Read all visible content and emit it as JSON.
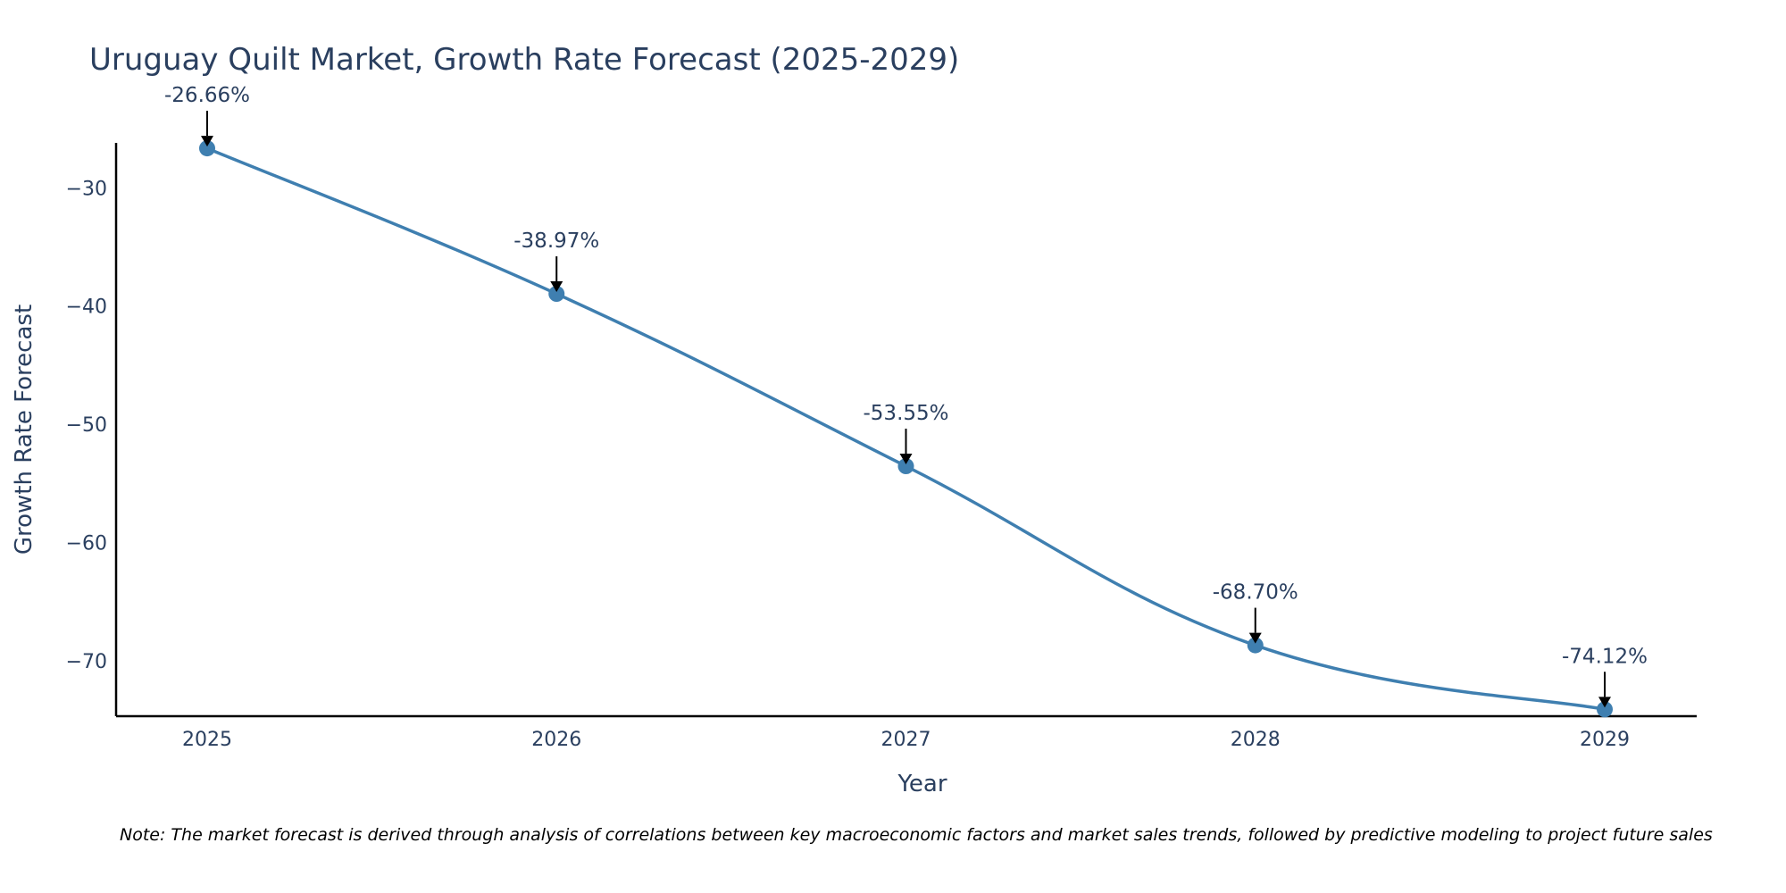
{
  "chart_data": {
    "type": "line",
    "title": "Uruguay Quilt Market, Growth Rate Forecast (2025-2029)",
    "xlabel": "Year",
    "ylabel": "Growth Rate Forecast",
    "categories": [
      "2025",
      "2026",
      "2027",
      "2028",
      "2029"
    ],
    "series": [
      {
        "name": "Growth Rate Forecast",
        "values": [
          -26.66,
          -38.97,
          -53.55,
          -68.7,
          -74.12
        ],
        "labels": [
          "-26.66%",
          "-38.97%",
          "-53.55%",
          "-68.70%",
          "-74.12%"
        ]
      }
    ],
    "yticks": [
      -30,
      -40,
      -50,
      -60,
      -70
    ],
    "ytick_labels": [
      "−30",
      "−40",
      "−50",
      "−60",
      "−70"
    ],
    "ylim": [
      -74.7,
      -26.2
    ],
    "grid": false,
    "line_color": "#3f7fb0",
    "note": "Note: The market forecast is derived through analysis of correlations between key macroeconomic factors and market sales trends, followed by predictive modeling to project future sales"
  }
}
